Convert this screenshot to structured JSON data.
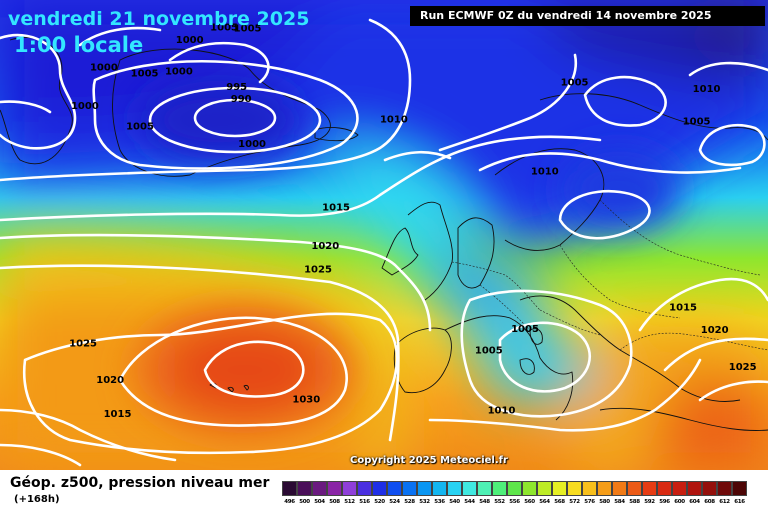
{
  "title": {
    "date": "vendredi 21 novembre 2025",
    "time": "1:00 locale"
  },
  "run_info": "Run ECMWF 0Z du vendredi 14 novembre 2025",
  "copyright": "Copyright 2025 Meteociel.fr",
  "legend": {
    "title": "Géop. z500, pression niveau mer",
    "subtitle": "(+168h)",
    "values": [
      "496",
      "500",
      "504",
      "508",
      "512",
      "516",
      "520",
      "524",
      "528",
      "532",
      "536",
      "540",
      "544",
      "548",
      "552",
      "556",
      "560",
      "564",
      "568",
      "572",
      "576",
      "580",
      "584",
      "588",
      "592",
      "596",
      "600",
      "604",
      "608",
      "612",
      "616"
    ],
    "colors": [
      "#2a0a33",
      "#4a0f59",
      "#6a1a7f",
      "#8a24a6",
      "#8f3fd9",
      "#4a2fe0",
      "#1f2fe6",
      "#0f4ef0",
      "#0a72f2",
      "#0a96f2",
      "#14b6f0",
      "#28d2f2",
      "#40e8e0",
      "#4ef0b4",
      "#4ef07a",
      "#5ee64a",
      "#8ee62e",
      "#bdec26",
      "#e6ef24",
      "#f7dc20",
      "#f7bf1c",
      "#f59d18",
      "#f07a16",
      "#ec5a16",
      "#e63c14",
      "#d92a12",
      "#c71e10",
      "#b0140e",
      "#94100c",
      "#700a0a",
      "#4d0606"
    ]
  },
  "isobar_labels": [
    {
      "text": "1000",
      "lon": -48.5,
      "lat": 68.2
    },
    {
      "text": "1000",
      "lon": -50.6,
      "lat": 64.3
    },
    {
      "text": "1005",
      "lon": -44.5,
      "lat": 62.2
    },
    {
      "text": "1005",
      "lon": -44.0,
      "lat": 67.6
    },
    {
      "text": "1000",
      "lon": -40.2,
      "lat": 67.8
    },
    {
      "text": "1000",
      "lon": -39.0,
      "lat": 71.0
    },
    {
      "text": "1005",
      "lon": -35.2,
      "lat": 72.3
    },
    {
      "text": "1005",
      "lon": -32.6,
      "lat": 72.2
    },
    {
      "text": "995",
      "lon": -33.8,
      "lat": 66.2
    },
    {
      "text": "990",
      "lon": -33.3,
      "lat": 65.0
    },
    {
      "text": "1000",
      "lon": -32.1,
      "lat": 60.4
    },
    {
      "text": "1010",
      "lon": -16.4,
      "lat": 62.9
    },
    {
      "text": "1015",
      "lon": -22.8,
      "lat": 53.9
    },
    {
      "text": "1020",
      "lon": -24.0,
      "lat": 50.0
    },
    {
      "text": "1025",
      "lon": -24.8,
      "lat": 47.6
    },
    {
      "text": "1030",
      "lon": -26.1,
      "lat": 34.3
    },
    {
      "text": "1025",
      "lon": -50.8,
      "lat": 40.0
    },
    {
      "text": "1020",
      "lon": -47.8,
      "lat": 36.3
    },
    {
      "text": "1015",
      "lon": -47.0,
      "lat": 32.8
    },
    {
      "text": "1005",
      "lon": 3.6,
      "lat": 66.7
    },
    {
      "text": "1010",
      "lon": 0.3,
      "lat": 57.6
    },
    {
      "text": "1010",
      "lon": 18.2,
      "lat": 66.0
    },
    {
      "text": "1005",
      "lon": 17.1,
      "lat": 62.7
    },
    {
      "text": "1005",
      "lon": -1.9,
      "lat": 41.5
    },
    {
      "text": "1005",
      "lon": -5.9,
      "lat": 39.3
    },
    {
      "text": "1010",
      "lon": -4.5,
      "lat": 33.2
    },
    {
      "text": "1015",
      "lon": 15.6,
      "lat": 43.7
    },
    {
      "text": "1020",
      "lon": 19.1,
      "lat": 41.4
    },
    {
      "text": "1025",
      "lon": 22.2,
      "lat": 37.6
    }
  ]
}
